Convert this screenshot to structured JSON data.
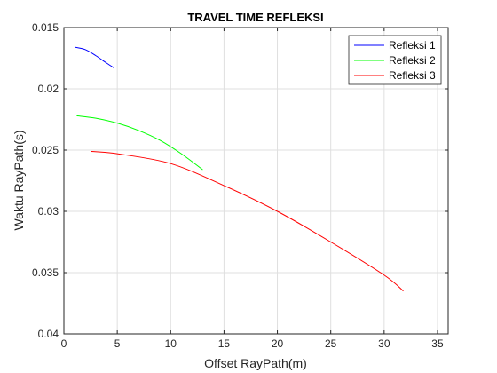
{
  "chart_data": {
    "type": "line",
    "title": "TRAVEL TIME REFLEKSI",
    "xlabel": "Offset RayPath(m)",
    "ylabel": "Waktu RayPath(s)",
    "xlim": [
      0,
      36
    ],
    "ylim": [
      0.015,
      0.04
    ],
    "y_reversed": true,
    "grid": true,
    "legend_position": "top-right",
    "x_ticks": [
      0,
      5,
      10,
      15,
      20,
      25,
      30,
      35
    ],
    "x_tick_labels": [
      "0",
      "5",
      "10",
      "15",
      "20",
      "25",
      "30",
      "35"
    ],
    "y_ticks": [
      0.015,
      0.02,
      0.025,
      0.03,
      0.035,
      0.04
    ],
    "y_tick_labels": [
      "0.015",
      "0.02",
      "0.025",
      "0.03",
      "0.035",
      "0.04"
    ],
    "series": [
      {
        "name": "Refleksi 1",
        "color": "#0000ff",
        "x": [
          1.0,
          2.0,
          3.0,
          4.0,
          4.7
        ],
        "y": [
          0.0166,
          0.0168,
          0.0173,
          0.0179,
          0.0183
        ]
      },
      {
        "name": "Refleksi 2",
        "color": "#00ff00",
        "x": [
          1.2,
          3.0,
          5.0,
          7.0,
          9.0,
          11.0,
          13.0
        ],
        "y": [
          0.0222,
          0.0224,
          0.0228,
          0.0234,
          0.0242,
          0.0253,
          0.0266
        ]
      },
      {
        "name": "Refleksi 3",
        "color": "#ff0000",
        "x": [
          2.5,
          5.0,
          10.0,
          15.0,
          20.0,
          25.0,
          30.0,
          31.8
        ],
        "y": [
          0.0251,
          0.0253,
          0.0261,
          0.0279,
          0.03,
          0.0325,
          0.0352,
          0.0365
        ]
      }
    ]
  }
}
